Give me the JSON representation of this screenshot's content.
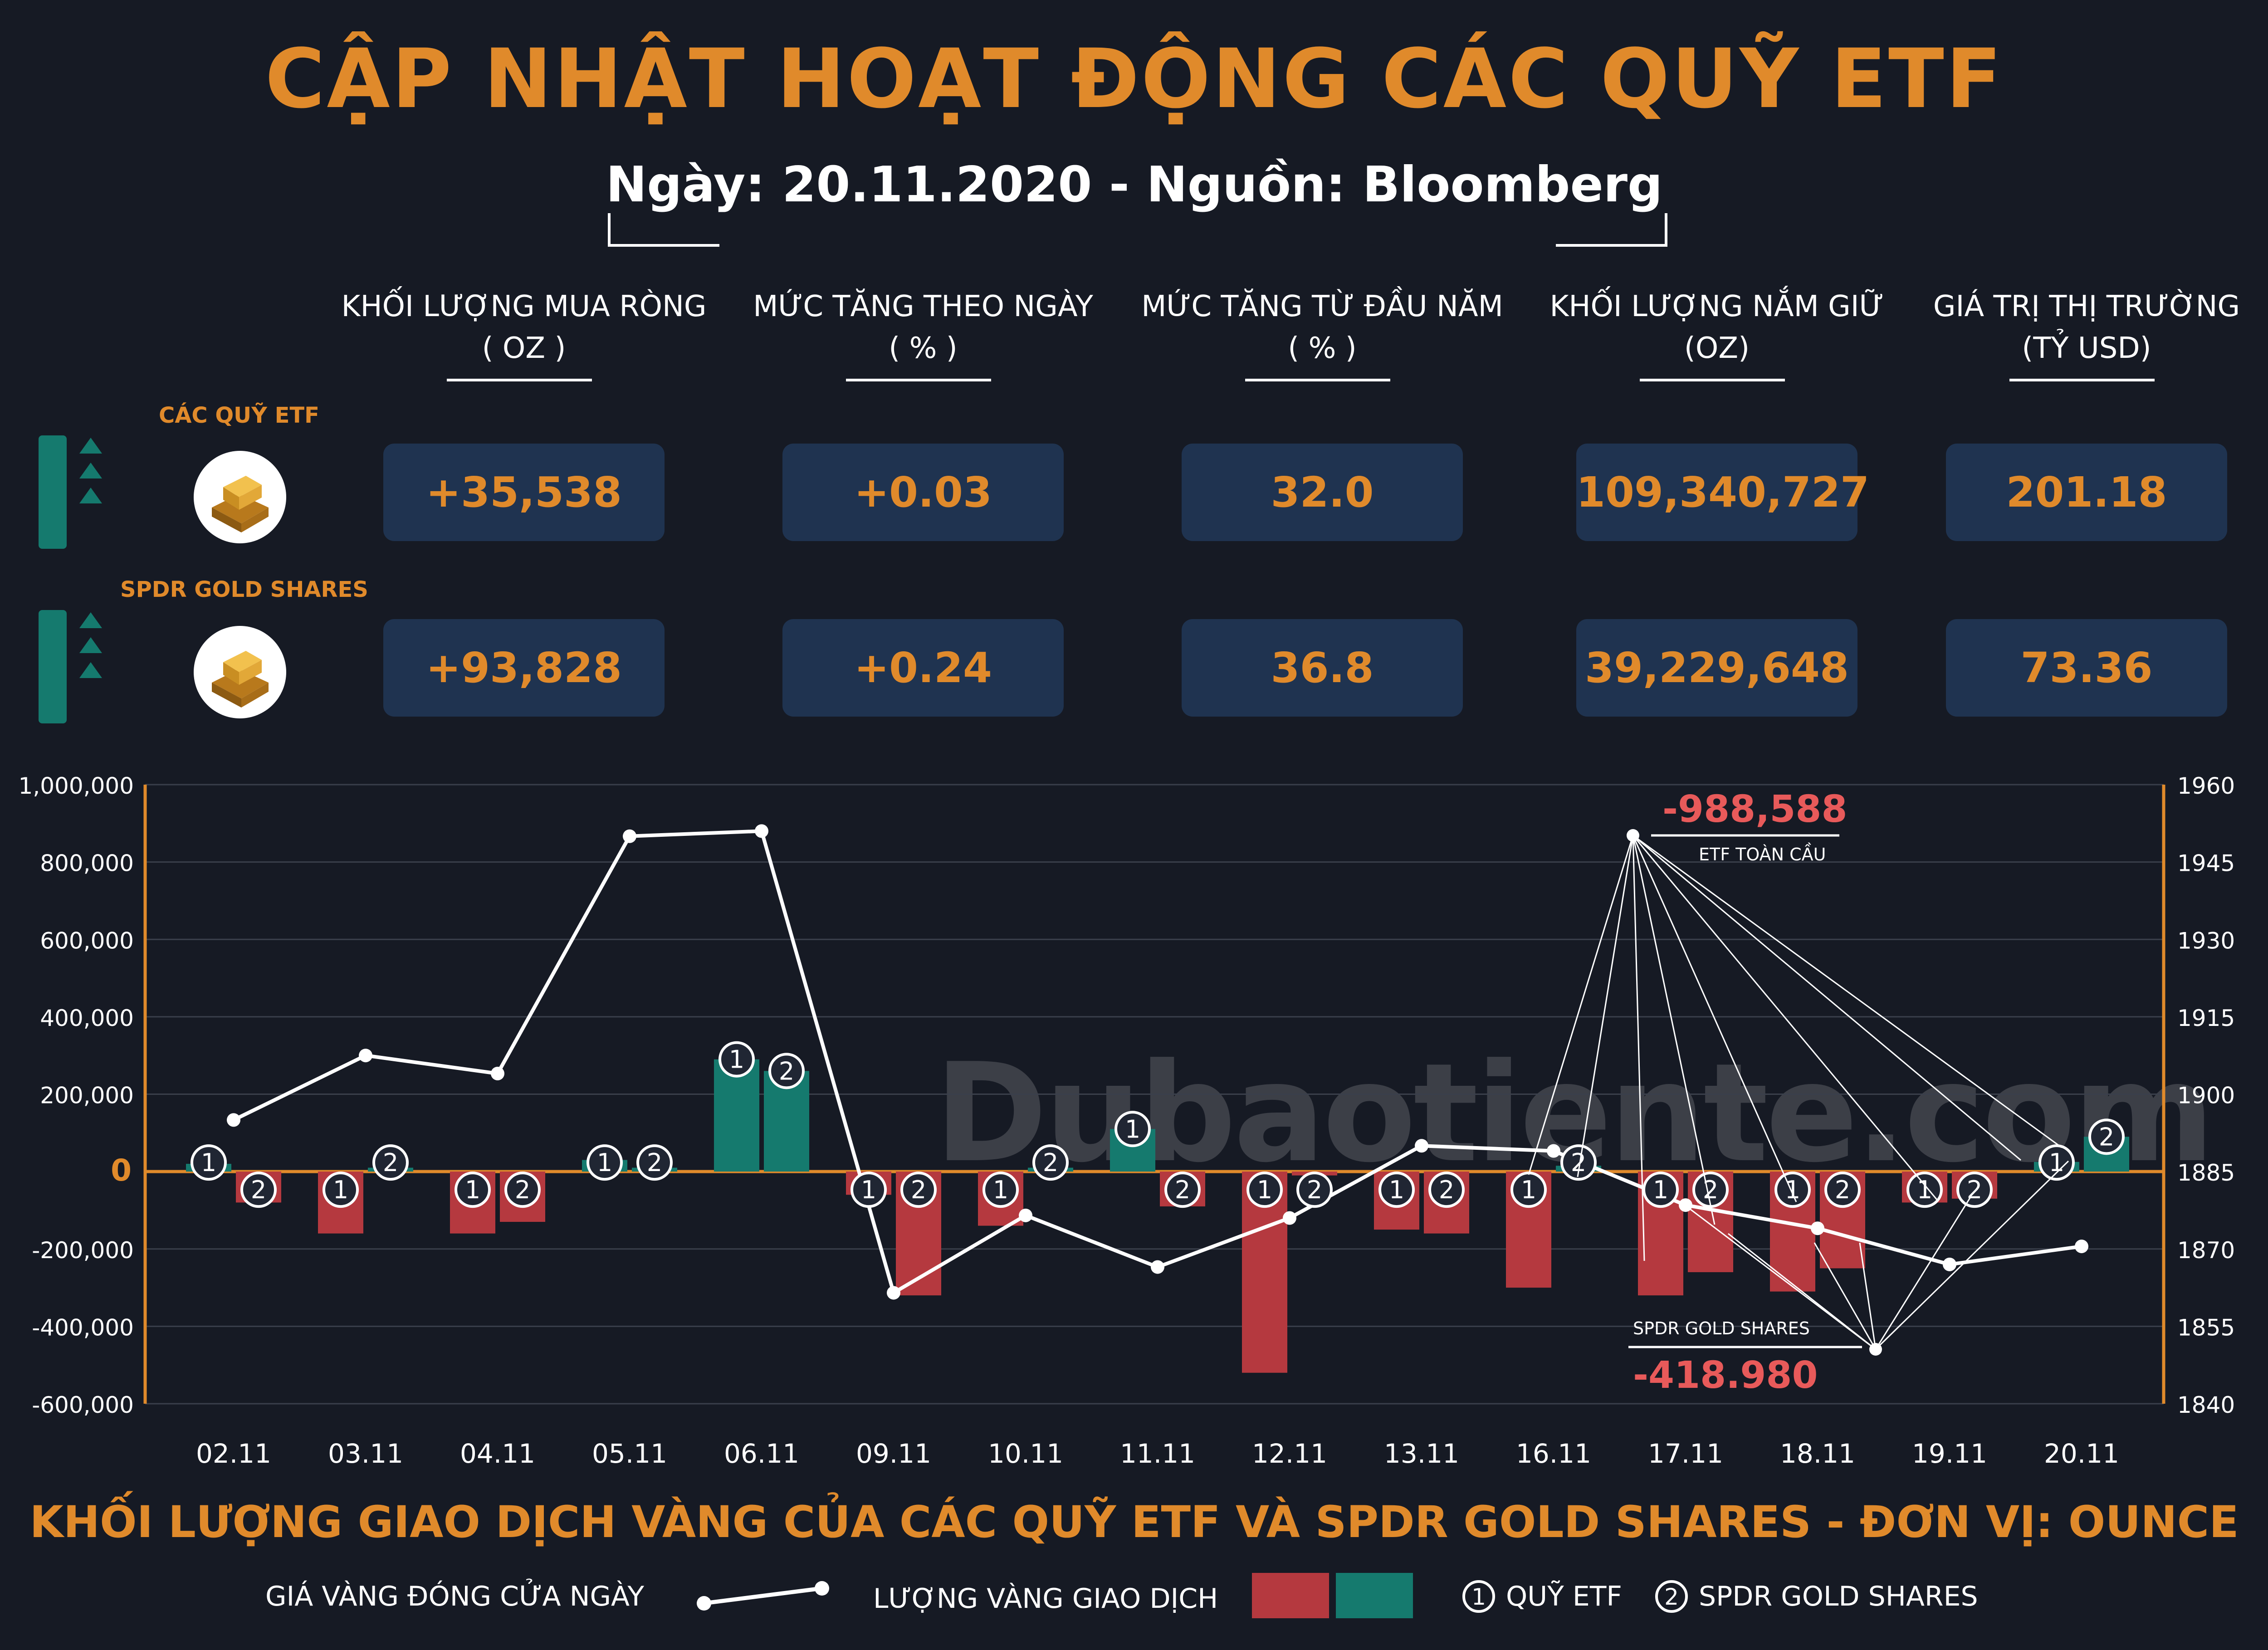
{
  "header": {
    "title": "CẬP NHẬT HOẠT ĐỘNG CÁC QUỸ ETF",
    "subtitle": "Ngày: 20.11.2020 - Nguồn: Bloomberg"
  },
  "columns": [
    {
      "label": "KHỐI LƯỢNG MUA RÒNG",
      "unit": "( OZ )"
    },
    {
      "label": "MỨC TĂNG THEO NGÀY",
      "unit": "( % )"
    },
    {
      "label": "MỨC TĂNG TỪ ĐẦU NĂM",
      "unit": "( % )"
    },
    {
      "label": "KHỐI LƯỢNG NẮM GIỮ",
      "unit": "(OZ)"
    },
    {
      "label": "GIÁ TRỊ THỊ TRƯỜNG",
      "unit": "(TỶ USD)"
    }
  ],
  "rows": [
    {
      "name": "CÁC QUỸ ETF",
      "values": [
        "+35,538",
        "+0.03",
        "32.0",
        "109,340,727",
        "201.18"
      ]
    },
    {
      "name": "SPDR GOLD SHARES",
      "values": [
        "+93,828",
        "+0.24",
        "36.8",
        "39,229,648",
        "73.36"
      ]
    }
  ],
  "watermark": "Dubaotiente.com",
  "colors": {
    "accent": "#e08a2b",
    "negative": "#b5393f",
    "positive": "#157a6e",
    "box": "#1f3350",
    "background": "#161a24",
    "callout": "#e85a5a"
  },
  "chart_data": {
    "type": "bar",
    "title": "KHỐI LƯỢNG GIAO DỊCH VÀNG CỦA CÁC QUỸ ETF VÀ SPDR GOLD SHARES - ĐƠN VỊ: OUNCE",
    "categories": [
      "02.11",
      "03.11",
      "04.11",
      "05.11",
      "06.11",
      "09.11",
      "10.11",
      "11.11",
      "12.11",
      "13.11",
      "16.11",
      "17.11",
      "18.11",
      "19.11",
      "20.11"
    ],
    "y_left": {
      "range": [
        -600000,
        1000000
      ],
      "ticks": [
        "1,000,000",
        "800,000",
        "600,000",
        "400,000",
        "200,000",
        "0",
        "-200,000",
        "-400,000",
        "-600,000"
      ]
    },
    "y_right": {
      "range": [
        1840,
        1960
      ],
      "ticks": [
        "1960",
        "1945",
        "1930",
        "1915",
        "1900",
        "1885",
        "1870",
        "1855",
        "1840"
      ]
    },
    "series": [
      {
        "name": "QUỸ ETF",
        "marker": "1",
        "values": [
          20000,
          -160000,
          -160000,
          30000,
          290000,
          -60000,
          -140000,
          110000,
          -520000,
          -150000,
          -300000,
          -320000,
          -310000,
          -80000,
          25000
        ]
      },
      {
        "name": "SPDR GOLD SHARES",
        "marker": "2",
        "values": [
          -80000,
          10000,
          -130000,
          10000,
          260000,
          -320000,
          10000,
          -90000,
          -10000,
          -160000,
          15000,
          -260000,
          -250000,
          -70000,
          90000
        ]
      },
      {
        "name": "GIÁ VÀNG ĐÓNG CỬA NGÀY",
        "type": "line",
        "axis": "right",
        "values": [
          1895,
          1907.5,
          1904,
          1950,
          1951,
          1861.5,
          1876.5,
          1866.5,
          1876,
          1890,
          1889,
          1878.5,
          1874,
          1867,
          1870.5
        ]
      }
    ],
    "callouts": [
      {
        "value": "-988,588",
        "label": "ETF TOÀN CẦU"
      },
      {
        "value": "-418.980",
        "label": "SPDR GOLD SHARES"
      }
    ],
    "legend": {
      "line_label": "GIÁ VÀNG ĐÓNG CỬA NGÀY",
      "bar_label": "LƯỢNG VÀNG GIAO DỊCH",
      "marker1_label": "QUỸ ETF",
      "marker2_label": "SPDR GOLD SHARES",
      "marker1_symbol": "1",
      "marker2_symbol": "2"
    }
  }
}
